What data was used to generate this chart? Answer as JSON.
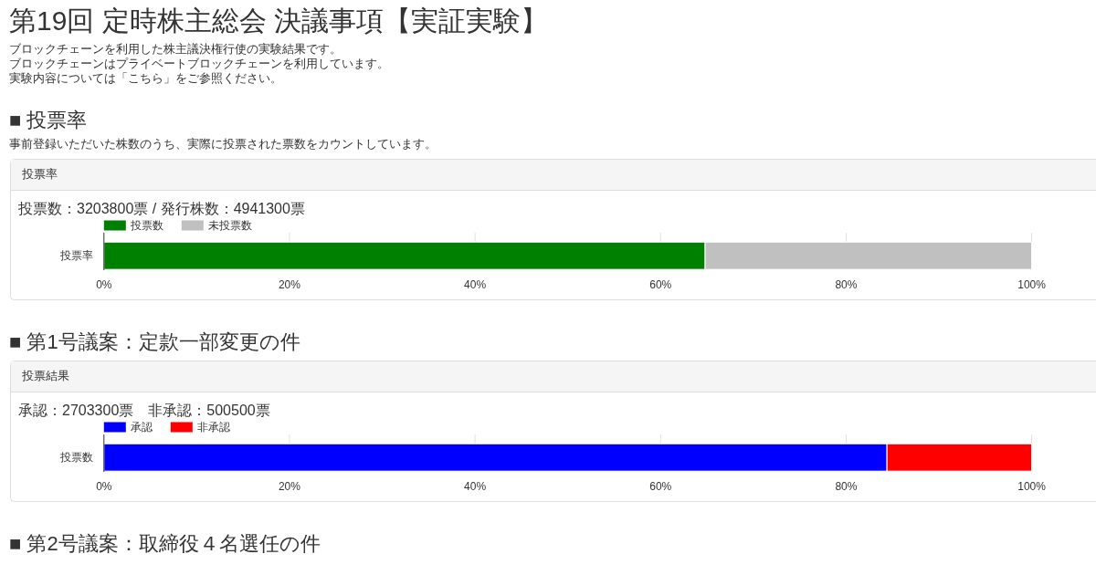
{
  "chart_data": [
    {
      "type": "other",
      "title": "第19回 定時株主総会 決議事項【実証実験】",
      "annotations": [
        "ブロックチェーンを利用した株主議決権行使の実験結果です。",
        "ブロックチェーンはプライベートブロックチェーンを利用しています。",
        "実験内容については「こちら」をご参照ください。"
      ]
    },
    {
      "type": "bar",
      "orientation": "horizontal",
      "stacked": true,
      "annotations": [
        "■ 投票率",
        "投票率"
      ],
      "subtitle": "事前登録いただいた株数のうち、実際に投票された票数をカウントしています。",
      "title": "投票数：3203800票 / 発行株数：4941300票",
      "categories": [
        "投票率"
      ],
      "series": [
        {
          "name": "投票数",
          "color": "#008000",
          "values": [
            64.8
          ]
        },
        {
          "name": "未投票数",
          "color": "#c0c0c0",
          "values": [
            35.2
          ]
        }
      ],
      "xlim": [
        0,
        100
      ],
      "xticks": [
        {
          "value": 0,
          "label": "0%"
        },
        {
          "value": 20,
          "label": "20%"
        },
        {
          "value": 40,
          "label": "40%"
        },
        {
          "value": 60,
          "label": "60%"
        },
        {
          "value": 80,
          "label": "80%"
        },
        {
          "value": 100,
          "label": "100%"
        }
      ],
      "legend": "top left"
    },
    {
      "type": "bar",
      "orientation": "horizontal",
      "stacked": true,
      "annotations": [
        "■ 第1号議案：定款一部変更の件",
        "投票結果"
      ],
      "title": "承認：2703300票　非承認：500500票",
      "categories": [
        "投票数"
      ],
      "series": [
        {
          "name": "承認",
          "color": "#0000ff",
          "values": [
            84.4
          ]
        },
        {
          "name": "非承認",
          "color": "#ff0000",
          "values": [
            15.6
          ]
        }
      ],
      "xlim": [
        0,
        100
      ],
      "xticks": [
        {
          "value": 0,
          "label": "0%"
        },
        {
          "value": 20,
          "label": "20%"
        },
        {
          "value": 40,
          "label": "40%"
        },
        {
          "value": 60,
          "label": "60%"
        },
        {
          "value": 80,
          "label": "80%"
        },
        {
          "value": 100,
          "label": "100%"
        }
      ],
      "legend": "top left"
    },
    {
      "type": "other",
      "title": "■ 第2号議案：取締役４名選任の件"
    }
  ]
}
